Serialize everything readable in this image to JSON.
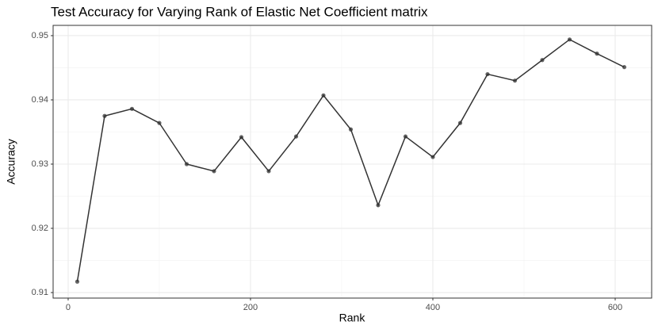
{
  "chart_data": {
    "type": "line",
    "title": "Test Accuracy for Varying Rank of Elastic Net Coefficient matrix",
    "x_label": "Rank",
    "y_label": "Accuracy",
    "x": [
      10,
      40,
      70,
      100,
      130,
      160,
      190,
      220,
      250,
      280,
      310,
      340,
      370,
      400,
      430,
      460,
      490,
      520,
      550,
      580,
      610
    ],
    "series": [
      {
        "name": "Accuracy",
        "color": "#333333",
        "values": [
          0.9117,
          0.9375,
          0.9386,
          0.9364,
          0.93,
          0.9289,
          0.9342,
          0.9289,
          0.9343,
          0.9407,
          0.9354,
          0.9236,
          0.9343,
          0.9311,
          0.9364,
          0.944,
          0.943,
          0.9462,
          0.9494,
          0.9472,
          0.9451
        ]
      }
    ],
    "xlim": [
      -16.5,
      640
    ],
    "xticks": [
      0,
      200,
      400,
      600
    ],
    "ylim": [
      0.90914,
      0.9516
    ],
    "yticks": [
      0.91,
      0.92,
      0.93,
      0.94,
      0.95
    ],
    "grid": true
  }
}
